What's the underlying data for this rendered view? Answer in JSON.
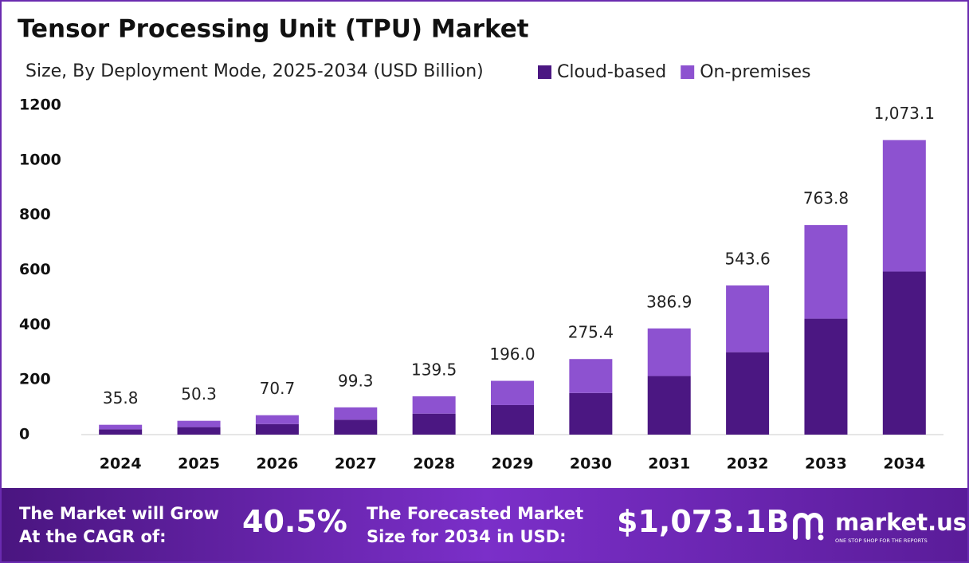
{
  "chart_data": {
    "type": "stacked_bar",
    "title": "Tensor Processing Unit (TPU) Market",
    "subtitle": "Size, By Deployment Mode, 2025-2034 (USD Billion)",
    "categories": [
      "2024",
      "2025",
      "2026",
      "2027",
      "2028",
      "2029",
      "2030",
      "2031",
      "2032",
      "2033",
      "2034"
    ],
    "series": [
      {
        "name": "Cloud-based",
        "color": "#4b1782",
        "values": [
          19.3,
          27.3,
          38.5,
          54.2,
          76.4,
          107.6,
          151.6,
          213.4,
          300.3,
          422.5,
          594.1
        ]
      },
      {
        "name": "On-premises",
        "color": "#8d52d0",
        "values": [
          16.5,
          23.0,
          32.2,
          45.1,
          63.1,
          88.4,
          123.8,
          173.5,
          243.3,
          341.3,
          479.0
        ]
      }
    ],
    "totals": [
      35.8,
      50.3,
      70.7,
      99.3,
      139.5,
      196.0,
      275.4,
      386.9,
      543.6,
      763.8,
      1073.1
    ],
    "total_labels": [
      "35.8",
      "50.3",
      "70.7",
      "99.3",
      "139.5",
      "196.0",
      "275.4",
      "386.9",
      "543.6",
      "763.8",
      "1,073.1"
    ],
    "ylim": [
      0,
      1200
    ],
    "yticks": [
      0,
      200,
      400,
      600,
      800,
      1000,
      1200
    ],
    "grid": false
  },
  "footer": {
    "cagr_text": [
      "The Market will Grow",
      "At the CAGR of:"
    ],
    "cagr": "40.5%",
    "forecast_text": [
      "The Forecasted Market",
      "Size for 2034 in USD:"
    ],
    "forecast": "$1,073.1B",
    "brand": "market.us",
    "tagline": "ONE STOP SHOP FOR THE REPORTS"
  }
}
